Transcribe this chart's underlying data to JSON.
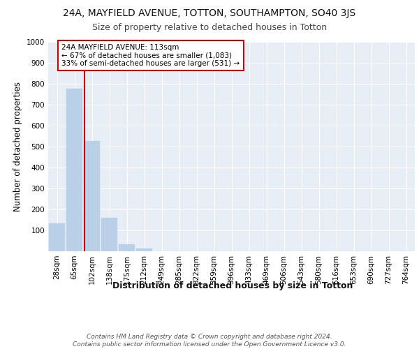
{
  "title1": "24A, MAYFIELD AVENUE, TOTTON, SOUTHAMPTON, SO40 3JS",
  "title2": "Size of property relative to detached houses in Totton",
  "xlabel": "Distribution of detached houses by size in Totton",
  "ylabel": "Number of detached properties",
  "bar_labels": [
    "28sqm",
    "65sqm",
    "102sqm",
    "138sqm",
    "175sqm",
    "212sqm",
    "249sqm",
    "285sqm",
    "322sqm",
    "359sqm",
    "396sqm",
    "433sqm",
    "469sqm",
    "506sqm",
    "543sqm",
    "580sqm",
    "616sqm",
    "653sqm",
    "690sqm",
    "727sqm",
    "764sqm"
  ],
  "bar_heights": [
    135,
    778,
    527,
    160,
    33,
    12,
    0,
    0,
    0,
    0,
    0,
    0,
    0,
    0,
    0,
    0,
    0,
    0,
    0,
    0,
    0
  ],
  "bar_color": "#b8d0e8",
  "bar_edgecolor": "#b8d0e8",
  "vline_color": "#cc0000",
  "vline_x_index": 2,
  "annotation_text": "24A MAYFIELD AVENUE: 113sqm\n← 67% of detached houses are smaller (1,083)\n33% of semi-detached houses are larger (531) →",
  "annotation_box_color": "#ffffff",
  "annotation_box_edgecolor": "#cc0000",
  "ylim": [
    0,
    1000
  ],
  "yticks": [
    0,
    100,
    200,
    300,
    400,
    500,
    600,
    700,
    800,
    900,
    1000
  ],
  "background_color": "#e8eef5",
  "footer": "Contains HM Land Registry data © Crown copyright and database right 2024.\nContains public sector information licensed under the Open Government Licence v3.0.",
  "title1_fontsize": 10,
  "title2_fontsize": 9,
  "xlabel_fontsize": 9,
  "ylabel_fontsize": 8.5,
  "tick_fontsize": 7.5,
  "footer_fontsize": 6.5,
  "ann_fontsize": 7.5
}
